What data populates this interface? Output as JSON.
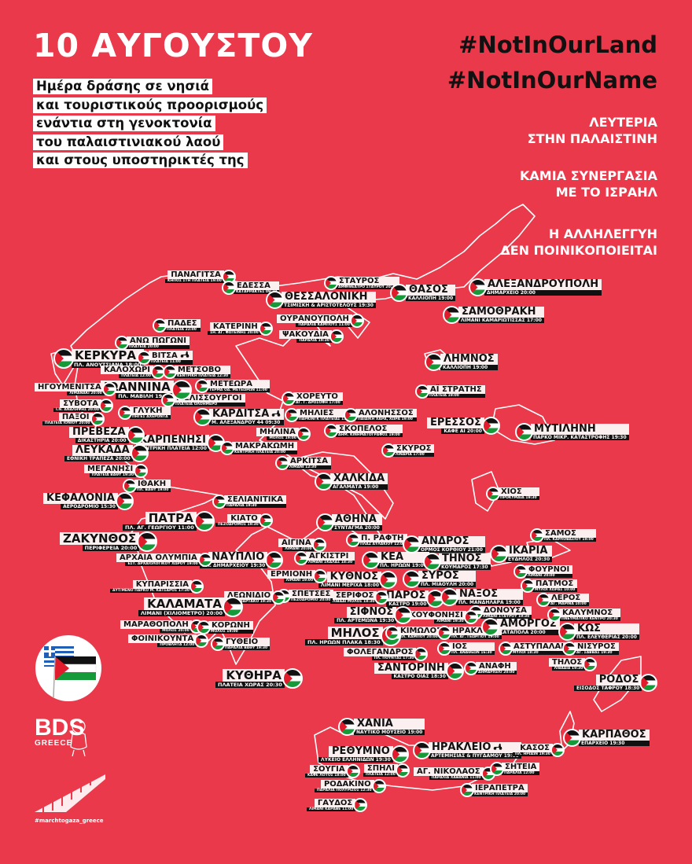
{
  "header": {
    "title": "10 ΑΥΓΟΥΣΤΟΥ",
    "subtitle_lines": [
      "Ημέρα δράσης σε νησιά",
      "και τουριστικούς προορισμούς",
      "ενάντια στη γενοκτονία",
      "του παλαιστινιακού λαού",
      "και στους υποστηρικτές της"
    ]
  },
  "hashtags": [
    "#NotInOurLand",
    "#NotInOurName"
  ],
  "slogans": [
    [
      "ΛΕΥΤΕΡΙΑ",
      "ΣΤΗΝ ΠΑΛΑΙΣΤΙΝΗ"
    ],
    [
      "ΚΑΜΙΑ ΣΥΝΕΡΓΑΣΙΑ",
      "ΜΕ ΤΟ ΙΣΡΑΗΛ"
    ],
    [
      "Η ΑΛΛΗΛΕΓΓΥΗ",
      "ΔΕΝ ΠΟΙΝΙΚΟΠΟΙΕΙΤΑΙ"
    ]
  ],
  "colors": {
    "background": "#E9394A",
    "label_bg": "#fbeff0",
    "detail_bg": "#111111",
    "map_outline": "#ffffff",
    "flag_black": "#111111",
    "flag_green": "#159a3a",
    "flag_red": "#e21b2c"
  },
  "marker_icon": "palestine-flag-icon",
  "locations": [
    {
      "name": "ΠΑΝΑΓΙΤΣΑ",
      "detail": "ΚΗΠΟΣ ΣΤΗ ΠΛΑΤΕΙΑ 19:00"
    },
    {
      "name": "ΕΔΕΣΣΑ",
      "detail": "ΚΑΤΑΡΡΑΚΤΕΣ 09:30"
    },
    {
      "name": "ΣΤΑΥΡΟΣ",
      "detail": "ΑΜΦΙΘΕΑΤΡΟ ΣΤΑΥΡΟΥ 20:30"
    },
    {
      "name": "ΘΕΣΣΑΛΟΝΙΚΗ",
      "detail": "ΤΣΙΜΙΣΚΗ & ΑΡΙΣΤΟΤΕΛΟΥΣ 19:30"
    },
    {
      "name": "ΘΑΣΟΣ",
      "detail": "ΚΑΛΛΙΟΠΗ 19:00"
    },
    {
      "name": "ΑΛΕΞΑΝΔΡΟΥΠΟΛΗ",
      "detail": "ΔΗΜΑΡΧΕΙΟ 20:00"
    },
    {
      "name": "ΣΑΜΟΘΡΑΚΗ",
      "detail": "ΛΙΜΑΝΙ ΚΑΜΑΡΙΩΤΙΣΣΑΣ 17:00"
    },
    {
      "name": "ΟΥΡΑΝΟΥΠΟΛΗ",
      "detail": "ΠΑΡΑΛΙΑ ΚΑΜΠΟΥΣ 11:00"
    },
    {
      "name": "ΨΑΚΟΥΔΙΑ",
      "detail": "ΠΑΡΑΛΙΑ 19:30"
    },
    {
      "name": "ΠΑΔΕΣ",
      "detail": "ΠΛΑΤΕΙΑ 22:00"
    },
    {
      "name": "ΚΑΤΕΡΙΝΗ",
      "detail": "1Η. ΑΓ. ΦΩΤΕΙΝΗΣ 20:00"
    },
    {
      "name": "ΑΝΩ ΠΩΓΩΝΙ",
      "detail": "ΠΛΑΤΕΙΑ 20:00"
    },
    {
      "name": "ΚΕΡΚΥΡΑ",
      "detail": "ΠΛ. ΑΝΟΥΤΣΙΑΝΑ 18:00"
    },
    {
      "name": "ΒΙΤΣΑ",
      "detail": "ΠΛΑΤΕΙΑ 11:00",
      "icon": "scooter-icon"
    },
    {
      "name": "ΚΑΛΟΧΩΡΙ",
      "detail": "ΠΛΑΤΕΙΑ 12:00"
    },
    {
      "name": "ΜΕΤΣΟΒΟ",
      "detail": "ΚΕΝΤΡΙΚΗ ΠΛΑΤΕΙΑ 12:30"
    },
    {
      "name": "ΙΩΑΝΝΙΝΑ",
      "detail": "ΠΛ. ΜΑΒΙΛΗ 19:00"
    },
    {
      "name": "ΜΕΤΕΩΡΑ",
      "detail": "ΤΕΡΜΑ ΟΔ. ΜΕΤΕΩΡΩΝ 11:00"
    },
    {
      "name": "ΗΓΟΥΜΕΝΙΤΣΑ",
      "detail": "ΛΙΜΑΝΑΚΙ 20:00"
    },
    {
      "name": "ΜΕΛΙΣΣΟΥΡΓΟΙ",
      "detail": "ΠΛΑΤΕΙΑ ΟΛΟΗΜΕΡΟ"
    },
    {
      "name": "ΣΥΒΟΤΑ",
      "detail": "Ι.Ν. ΑΝΑΛΗΨΗΣ 20:00"
    },
    {
      "name": "ΓΛΥΚΗ",
      "detail": "ΠΗΓΕΣ ΑΧΕΡΟΝΤΑ"
    },
    {
      "name": "ΚΑΡΔΙΤΣΑ",
      "detail": "Μ. ΑΛΕΞΑΝΔΡΟΥ 44 09:30",
      "icon": "scooter-icon"
    },
    {
      "name": "ΠΑΞΟΙ",
      "detail": "ΠΛΑΤΕΙΑ ΙΟΝΙΟΥ 20:00"
    },
    {
      "name": "ΧΟΡΕΥΤΟ",
      "detail": "ΑΓ. Γ. ΔΡΟΣΟΦΗ 17:00"
    },
    {
      "name": "ΜΗΛΙΕΣ",
      "detail": "ΠΑΡΚΙΝΓΚ ΠΛΑΤΕΙΑΣ 11:00"
    },
    {
      "name": "ΑΛΟΝΗΣΣΟΣ",
      "detail": "ΠΑΙΔΙΚΗ ΧΑΡΑ, ΧΩΡΑ 19:00"
    },
    {
      "name": "ΜΗΛΙΝΑ",
      "detail": "ΜΟΛΟΣ 19:00"
    },
    {
      "name": "ΣΚΟΠΕΛΟΣ",
      "detail": "ΔΗΜ. ΚΙΝΗΜΑΤΟΓΡΑΦΟΣ 19:00"
    },
    {
      "name": "ΕΡΕΣΣΟΣ",
      "detail": "ΚΑΦΕ ΑΙ 20:00"
    },
    {
      "name": "ΜΥΤΙΛΗΝΗ",
      "detail": "ΠΑΡΚΟ ΜΙΚΡ. ΚΑΤΑΣΤΡΟΦΗΣ 19:30"
    },
    {
      "name": "ΛΗΜΝΟΣ",
      "detail": "ΚΑΛΛΙΟΠΗ 19:00"
    },
    {
      "name": "ΑΪ ΣΤΡΑΤΗΣ",
      "detail": "ΠΛΑΤΕΙΑ 19:00"
    },
    {
      "name": "ΠΡΕΒΕΖΑ",
      "detail": "ΔΙΚΑΣΤΗΡΙΑ 20:00"
    },
    {
      "name": "ΚΑΡΠΕΝΗΣΙ",
      "detail": "ΚΕΝΤΡΙΚΗ ΠΛΑΤΕΙΑ 12:00"
    },
    {
      "name": "ΜΑΚΡΑΚΩΜΗ",
      "detail": "ΚΕΝΤΡΙΚΗ ΠΛΑΤΕΙΑ 20:00"
    },
    {
      "name": "ΛΕΥΚΑΔΑ",
      "detail": "ΕΘΝΙΚΗ ΤΡΑΠΕΖΑ 20:00"
    },
    {
      "name": "ΜΕΓΑΝΗΣΙ",
      "detail": "ΠΛΑΤΕΙΑ ΒΑΘΥ 19:30"
    },
    {
      "name": "ΣΚΥΡΟΣ",
      "detail": "ΛΙΝΑΡΙΑ 17:00"
    },
    {
      "name": "ΑΡΚΙΤΣΑ",
      "detail": "ΛΙΜΑΝΙ 12:30"
    },
    {
      "name": "ΙΘΑΚΗ",
      "detail": "ΠΛ. ΒΑΘΥ 19:00"
    },
    {
      "name": "ΧΑΛΚΙΔΑ",
      "detail": "ΑΓΑΛΜΑΤΑ 19:00"
    },
    {
      "name": "ΚΕΦΑΛΟΝΙΑ",
      "detail": "ΑΕΡΟΔΡΟΜΙΟ 15:30"
    },
    {
      "name": "ΧΙΟΣ",
      "detail": "ΠΡΟΚΥΜΑΙΑ 19:30"
    },
    {
      "name": "ΣΕΛΙΑΝΙΤΙΚΑ",
      "detail": "ΠΑΡΑΛΙΑ 19:30"
    },
    {
      "name": "ΠΑΤΡΑ",
      "detail": "ΠΛ. ΑΓ. ΓΕΩΡΓΙΟΥ 11:00"
    },
    {
      "name": "ΚΙΑΤΟ",
      "detail": "ΠΕΖΟΔΡΟΜΟΣ 19:30"
    },
    {
      "name": "ΑΘΗΝΑ",
      "detail": "ΣΥΝΤΑΓΜΑ 20:00"
    },
    {
      "name": "ΖΑΚΥΝΘΟΣ",
      "detail": "ΠΕΡΙΦΕΡΕΙΑ 20:00"
    },
    {
      "name": "ΣΑΜΟΣ",
      "detail": "ΠΛ. ΚΑΡΛΟΒΑΣΙΟΥ 19:00"
    },
    {
      "name": "Π. ΡΑΦΤΗ",
      "detail": "ΠΛΑΖ ΑΥΛΑΚΙΟΥ 12:00"
    },
    {
      "name": "ΑΙΓΙΝΑ",
      "detail": "ΛΙΜΑΝΙ 20:00"
    },
    {
      "name": "ΑΝΔΡΟΣ",
      "detail": "ΟΡΜΟΣ ΚΟΡΘΙΟΥ 21:00"
    },
    {
      "name": "ΑΡΧΑΙΑ ΟΛΥΜΠΙΑ",
      "detail": "ΕΣΤ. ΑΡΧΑΙΟΛΟΓΙΚΟΥ ΧΩΡΟΥ 19:00"
    },
    {
      "name": "ΙΚΑΡΙΑ",
      "detail": "ΕΥΔΗΛΟΣ 20:30"
    },
    {
      "name": "ΝΑΥΠΛΙΟ",
      "detail": "ΠΛ. ΔΗΜΑΡΧΕΙΟΥ 19:30"
    },
    {
      "name": "ΑΓΚΙΣΤΡΙ",
      "detail": "ΛΙΜΑΝΙ ΣΚΑΛΑΣ 18:30"
    },
    {
      "name": "ΚΕΑ",
      "detail": "ΠΛ. ΗΡΩΩΝ 19:00"
    },
    {
      "name": "ΤΗΝΟΣ",
      "detail": "ΚΟΥΜΑΡΟΣ 17:30"
    },
    {
      "name": "ΦΟΥΡΝΟΙ",
      "detail": "ΛΙΜΑΝΙ 20:00"
    },
    {
      "name": "ΕΡΜΙΟΝΗ",
      "detail": "ΛΙΜΑΝΙ 19:00"
    },
    {
      "name": "ΚΥΘΝΟΣ",
      "detail": "ΛΙΜΑΝΙ ΜΕΡΙΧΑ 18:00"
    },
    {
      "name": "ΣΥΡΟΣ",
      "detail": "ΠΛ. ΜΙΑΟΥΛΗ 20:00"
    },
    {
      "name": "ΠΑΤΜΟΣ",
      "detail": "ΜΥΛΟΙ ΧΩΡΑΣ 10:00"
    },
    {
      "name": "ΚΥΠΑΡΙΣΣΙΑ",
      "detail": "ΑΥΤ/ΜΕΝΟ ΠΑΡΚΟ Μ. ΚΑΤΣΑΡΟΣ 17:30"
    },
    {
      "name": "ΛΕΡΟΣ",
      "detail": "ΑΓ. ΜΑΡΙΝΑ 10:00"
    },
    {
      "name": "ΣΠΕΤΣΕΣ",
      "detail": "ΠΕΖΟΔΡΟΜΙΟ 20:00"
    },
    {
      "name": "ΣΕΡΙΦΟΣ",
      "detail": "ΛΙΒΑΔΙ ΜΟΛΟΣ 18:30"
    },
    {
      "name": "ΠΑΡΟΣ",
      "detail": "ΚΑΣΤΡΟ 19:00"
    },
    {
      "name": "ΝΑΞΟΣ",
      "detail": "ΠΛ. ΜΑΝΔΗΛΑΡΑ 19:00"
    },
    {
      "name": "ΛΕΩΝΙΔΙΟ",
      "detail": "ΠΛ. ΜΑΡΤΑΚΟ 19:30"
    },
    {
      "name": "ΚΑΛΥΜΝΟΣ",
      "detail": "ΠΝΕΥΜΑΤΙΚΟ ΚΕΝΤΡΟ 20:30"
    },
    {
      "name": "ΚΑΛΑΜΑΤΑ",
      "detail": "ΛΙΜΑΝΙ (ΧΙΛΙΟΜΕΤΡΟ) 20:00"
    },
    {
      "name": "ΣΙΦΝΟΣ",
      "detail": "ΠΛ. ΑΡΤΕΜΩΝΑ 19:30"
    },
    {
      "name": "ΔΟΝΟΥΣΑ",
      "detail": "ΛΙΜΑΝΙ ΣΤΑΥΡΟΥ 19:30"
    },
    {
      "name": "ΚΟΥΦΟΝΗΣΙ",
      "detail": "ΛΙΜΑΝΙ 19:30"
    },
    {
      "name": "ΑΜΟΡΓΟΣ",
      "detail": "ΚΑΤΑΠΟΛΑ 20:00"
    },
    {
      "name": "ΚΩΣ",
      "detail": "ΠΛ. ΕΛΕΥΘΕΡΙΑΣ 20:00"
    },
    {
      "name": "ΜΑΡΑΘΟΠΟΛΗ",
      "detail": "ΜΟΛΟΣ 20:00"
    },
    {
      "name": "ΚΟΡΩΝΗ",
      "detail": "ΜΟΛΟΣ 19:00"
    },
    {
      "name": "ΜΗΛΟΣ",
      "detail": "ΠΛ. ΗΡΩΩΝ ΠΛΑΚΑ 18:30"
    },
    {
      "name": "ΚΙΜΩΛΟΣ",
      "detail": "ΠΛ. ΚΑΜΠΟΥ 20:00"
    },
    {
      "name": "ΗΡΑΚΛΕΙΑ",
      "detail": "ΠΛ. ΑΓ. ΓΕΩΡΓΙΟΥ 19:00"
    },
    {
      "name": "ΦΟΙΝΙΚΟΥΝΤΑ",
      "detail": "ΠΡΟΒΛΗΤΑ 12:00"
    },
    {
      "name": "ΑΣΤΥΠΑΛΑΙΑ",
      "detail": "ΜΥΛΟΙ 18:30"
    },
    {
      "name": "ΝΙΣΥΡΟΣ",
      "detail": "ΑΓ. ΣΑΒΒΑΣ 19:30"
    },
    {
      "name": "ΙΟΣ",
      "detail": "ΠΛ. ΑΝΑΘΕΩΝ 16:30"
    },
    {
      "name": "ΓΥΘΕΙΟ",
      "detail": "ΠΑΡΑΛΙΑ ΒΑΘΥ 19:30"
    },
    {
      "name": "ΦΟΛΕΓΑΝΔΡΟΣ",
      "detail": "ΠΛ. ΠΟΥΝΤΑΣ 17:30"
    },
    {
      "name": "ΤΗΛΟΣ",
      "detail": "ΛΙΒΑΔΙΑ 19:30"
    },
    {
      "name": "ΑΝΑΦΗ",
      "detail": "ΔΗΜΑΡΧΕΙΟ 20:00"
    },
    {
      "name": "ΣΑΝΤΟΡΙΝΗ",
      "detail": "ΚΑΣΤΡΟ ΟΙΑΣ 18:30"
    },
    {
      "name": "ΚΥΘΗΡΑ",
      "detail": "ΠΛΑΤΕΙΑ ΧΩΡΑΣ 20:30"
    },
    {
      "name": "ΡΟΔΟΣ",
      "detail": "ΕΙΣΟΔΟΣ ΤΑΦΡΟΥ 18:30"
    },
    {
      "name": "ΧΑΝΙΑ",
      "detail": "ΝΑΥΤΙΚΟ ΜΟΥΣΕΙΟ 19:00"
    },
    {
      "name": "ΚΑΡΠΑΘΟΣ",
      "detail": "ΕΠΑΡΧΕΙΟ 19:30"
    },
    {
      "name": "ΡΕΘΥΜΝΟ",
      "detail": "ΛΥΚΕΙΟ ΕΛΛΗΝΙΔΩΝ 19:30"
    },
    {
      "name": "ΗΡΑΚΛΕΙΟ",
      "detail": "ΑΡΤΕΜΗΣΙΑΣ & ΠΥΓΔΑΜΟΥ 19:00",
      "icon": "scooter-icon"
    },
    {
      "name": "ΚΑΣΟΣ",
      "detail": "ΠΛ. ΗΡΩΩΝ 19:30"
    },
    {
      "name": "ΣΟΥΓΙΑ",
      "detail": "ΚΑΦΕ ΛΟΤΟΣ 18:00"
    },
    {
      "name": "ΣΠΗΛΙ",
      "detail": "ΠΛΑΤΕΙΑ 12:00"
    },
    {
      "name": "ΑΓ. ΝΙΚΟΛΑΟΣ",
      "detail": "ΠΑΡΑΛΙΑ ΧΑΒΑΝΙΑ 11:00"
    },
    {
      "name": "ΣΗΤΕΙΑ",
      "detail": "ΠΑΡΑΛΙΑ 12:00"
    },
    {
      "name": "ΡΟΔΑΚΙΝΟ",
      "detail": "ΠΑΡΑΛΙΑ ΠΟΛΥΡΙΖΟΣ 12:30"
    },
    {
      "name": "ΙΕΡΑΠΕΤΡΑ",
      "detail": "ΚΕΝΤΡΙΚΗ ΠΛΑΤΕΙΑ 20:00"
    },
    {
      "name": "ΓΑΥΔΟΣ",
      "detail": "ΛΙΜΑΝΙ ΚΑΡΑΒΕ 11:00"
    }
  ],
  "logos": {
    "bds_main": "BDS",
    "bds_sub": "GREECE",
    "march_hashtag": "#marchtogaza_greece"
  }
}
